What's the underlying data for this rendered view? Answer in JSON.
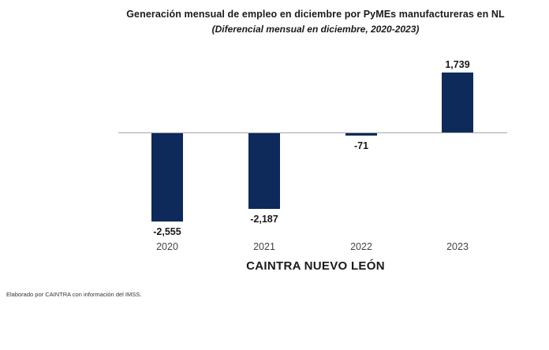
{
  "chart_data": {
    "type": "bar",
    "title": "Generación mensual de empleo en diciembre por PyMEs manufactureras en NL",
    "subtitle": "(Diferencial mensual en diciembre, 2020-2023)",
    "categories": [
      "2020",
      "2021",
      "2022",
      "2023"
    ],
    "values": [
      -2555,
      -2187,
      -71,
      1739
    ],
    "value_labels": [
      "-2,555",
      "-2,187",
      "-71",
      "1,739"
    ],
    "xlabel": "CAINTRA NUEVO LEÓN",
    "ylabel": "",
    "ylim": [
      -2800,
      2000
    ],
    "grid": false,
    "legend": "none",
    "bar_color": "#0d2a5a",
    "axis_line_color": "#a6a6a6"
  },
  "footnote": "Elaborado por CAINTRA con información del IMSS."
}
